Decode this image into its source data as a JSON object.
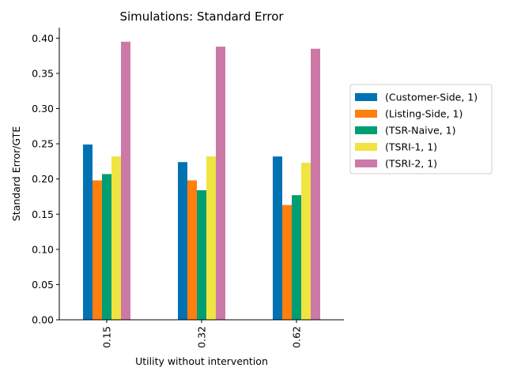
{
  "chart_data": {
    "type": "bar",
    "title": "Simulations: Standard Error",
    "xlabel": "Utility without intervention",
    "ylabel": "Standard Error/GTE",
    "categories": [
      "0.15",
      "0.32",
      "0.62"
    ],
    "ylim": [
      0,
      0.415
    ],
    "yticks": [
      0.0,
      0.05,
      0.1,
      0.15,
      0.2,
      0.25,
      0.3,
      0.35,
      0.4
    ],
    "ytick_labels": [
      "0.00",
      "0.05",
      "0.10",
      "0.15",
      "0.20",
      "0.25",
      "0.30",
      "0.35",
      "0.40"
    ],
    "grid": false,
    "legend_position": "outside-right",
    "series": [
      {
        "name": "(Customer-Side, 1)",
        "color": "#0072B2",
        "values": [
          0.249,
          0.224,
          0.232
        ]
      },
      {
        "name": "(Listing-Side, 1)",
        "color": "#FF7F0E",
        "values": [
          0.198,
          0.198,
          0.163
        ]
      },
      {
        "name": "(TSR-Naive, 1)",
        "color": "#009E73",
        "values": [
          0.207,
          0.184,
          0.177
        ]
      },
      {
        "name": "(TSRI-1, 1)",
        "color": "#F0E442",
        "values": [
          0.232,
          0.232,
          0.223
        ]
      },
      {
        "name": "(TSRI-2, 1)",
        "color": "#CC79A7",
        "values": [
          0.395,
          0.388,
          0.385
        ]
      }
    ]
  }
}
